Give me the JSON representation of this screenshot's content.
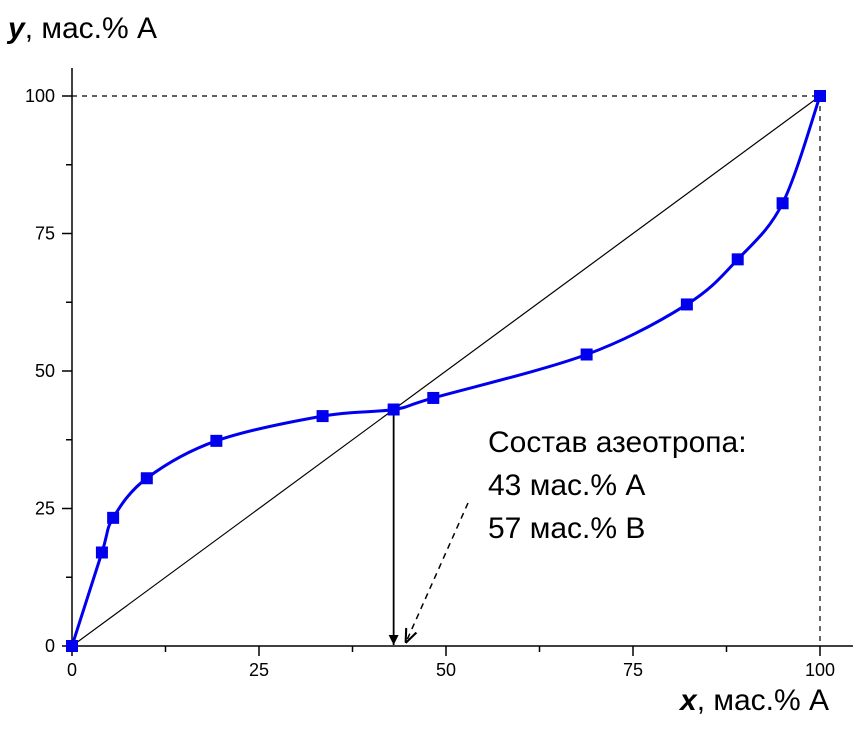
{
  "chart_data": {
    "type": "scatter",
    "xlabel_var": "x",
    "xlabel_unit": ", мас.% А",
    "ylabel_var": "y",
    "ylabel_unit": ", мас.% А",
    "xlim": [
      0,
      100
    ],
    "ylim": [
      0,
      100
    ],
    "xticks": [
      0,
      25,
      50,
      75,
      100
    ],
    "yticks": [
      0,
      25,
      50,
      75,
      100
    ],
    "grid": false,
    "series": [
      {
        "color": "#0000ee",
        "marker": "square",
        "points": [
          [
            0,
            0
          ],
          [
            4,
            17
          ],
          [
            5.5,
            23.3
          ],
          [
            10,
            30.5
          ],
          [
            19.3,
            37.3
          ],
          [
            33.5,
            41.8
          ],
          [
            43,
            43
          ],
          [
            48.3,
            45.1
          ],
          [
            68.8,
            53
          ],
          [
            82.2,
            62.1
          ],
          [
            89,
            70.3
          ],
          [
            95,
            80.5
          ],
          [
            100,
            100
          ]
        ],
        "fit_curve": true
      }
    ],
    "diagonal": {
      "from": [
        0,
        0
      ],
      "to": [
        100,
        100
      ],
      "color": "#000000"
    },
    "azeotrope_x": 43,
    "annotation_lines": [
      "Состав азеотропа:",
      "43 мас.% А",
      "57 мас.% В"
    ]
  }
}
